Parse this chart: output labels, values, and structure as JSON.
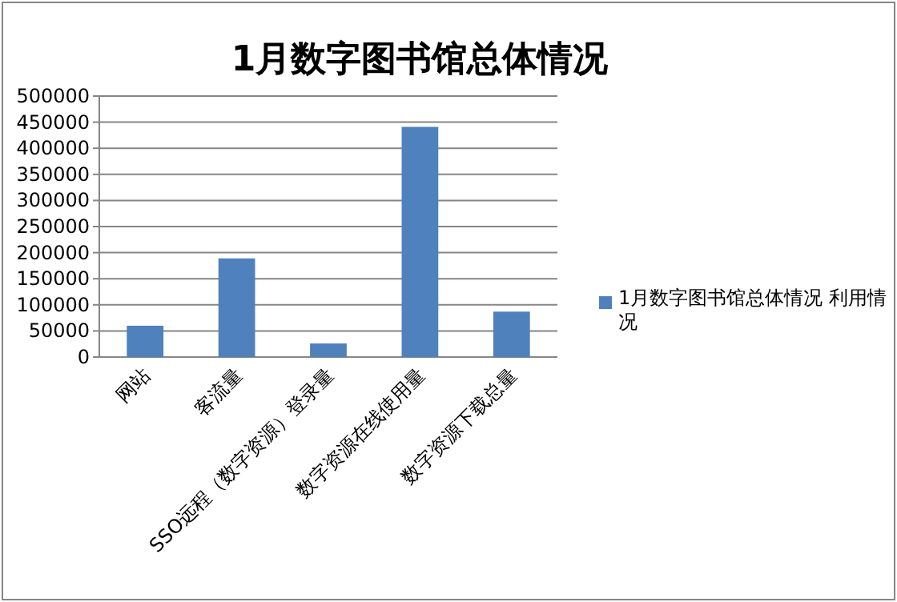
{
  "chart_data": {
    "type": "bar",
    "title": "1月数字图书馆总体情况",
    "categories": [
      "网站",
      "客流量",
      "SSO远程（数字资源）登录量",
      "数字资源在线使用量",
      "数字资源下载总量"
    ],
    "series": [
      {
        "name": "1月数字图书馆总体情况 利用情况",
        "color": "#4f81bd",
        "values": [
          60000,
          189000,
          26000,
          441000,
          87000
        ]
      }
    ],
    "ylim": [
      0,
      500000
    ],
    "yticks": [
      0,
      50000,
      100000,
      150000,
      200000,
      250000,
      300000,
      350000,
      400000,
      450000,
      500000
    ],
    "grid": "y",
    "legend": "right"
  }
}
